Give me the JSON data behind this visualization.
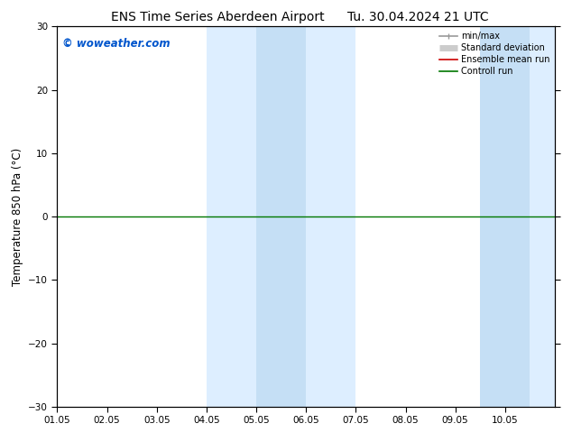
{
  "title_left": "ENS Time Series Aberdeen Airport",
  "title_right": "Tu. 30.04.2024 21 UTC",
  "ylabel": "Temperature 850 hPa (°C)",
  "ylim": [
    -30,
    30
  ],
  "yticks": [
    -30,
    -20,
    -10,
    0,
    10,
    20,
    30
  ],
  "xlim": [
    0,
    10
  ],
  "xtick_labels": [
    "01.05",
    "02.05",
    "03.05",
    "04.05",
    "05.05",
    "06.05",
    "07.05",
    "08.05",
    "09.05",
    "10.05"
  ],
  "xtick_positions": [
    0,
    1,
    2,
    3,
    4,
    5,
    6,
    7,
    8,
    9
  ],
  "watermark": "© woweather.com",
  "watermark_color": "#0055cc",
  "shaded_outer": [
    {
      "xstart": 3.0,
      "xend": 6.0,
      "color": "#ddeeff"
    },
    {
      "xstart": 8.5,
      "xend": 10.0,
      "color": "#ddeeff"
    }
  ],
  "shaded_inner": [
    {
      "xstart": 4.0,
      "xend": 5.0,
      "color": "#c5dff5"
    },
    {
      "xstart": 8.5,
      "xend": 9.5,
      "color": "#c5dff5"
    }
  ],
  "legend_entries": [
    {
      "label": "min/max",
      "color": "#999999",
      "lw": 1.2
    },
    {
      "label": "Standard deviation",
      "color": "#cccccc",
      "lw": 5
    },
    {
      "label": "Ensemble mean run",
      "color": "#cc0000",
      "lw": 1.2
    },
    {
      "label": "Controll run",
      "color": "#007700",
      "lw": 1.2
    }
  ],
  "hline_y": 0,
  "hline_color": "#007700",
  "hline_lw": 1.0,
  "background_color": "#ffffff",
  "plot_bg_color": "#ffffff",
  "title_fontsize": 10,
  "tick_fontsize": 7.5,
  "ylabel_fontsize": 8.5
}
